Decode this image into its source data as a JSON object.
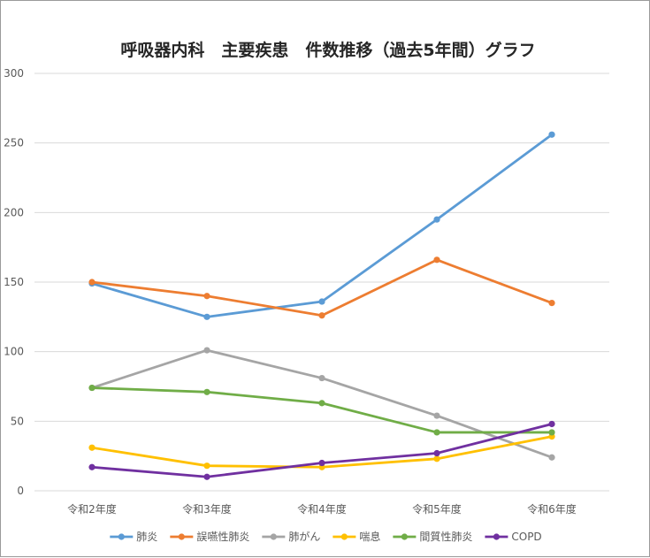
{
  "chart_data": {
    "type": "line",
    "title": "呼吸器内科　主要疾患　件数推移（過去5年間）グラフ",
    "xlabel": "",
    "ylabel": "",
    "categories": [
      "令和2年度",
      "令和3年度",
      "令和4年度",
      "令和5年度",
      "令和6年度"
    ],
    "ylim": [
      0,
      300
    ],
    "yticks": [
      0,
      50,
      100,
      150,
      200,
      250,
      300
    ],
    "grid": true,
    "legend_position": "bottom",
    "series": [
      {
        "name": "肺炎",
        "color": "#5b9bd5",
        "values": [
          149,
          125,
          136,
          195,
          256
        ]
      },
      {
        "name": "誤嚥性肺炎",
        "color": "#ed7d31",
        "values": [
          150,
          140,
          126,
          166,
          135
        ]
      },
      {
        "name": "肺がん",
        "color": "#a5a5a5",
        "values": [
          74,
          101,
          81,
          54,
          24
        ]
      },
      {
        "name": "喘息",
        "color": "#ffc000",
        "values": [
          31,
          18,
          17,
          23,
          39
        ]
      },
      {
        "name": "間質性肺炎",
        "color": "#70ad47",
        "values": [
          74,
          71,
          63,
          42,
          42
        ]
      },
      {
        "name": "COPD",
        "color": "#7030a0",
        "values": [
          17,
          10,
          20,
          27,
          48
        ]
      }
    ]
  }
}
